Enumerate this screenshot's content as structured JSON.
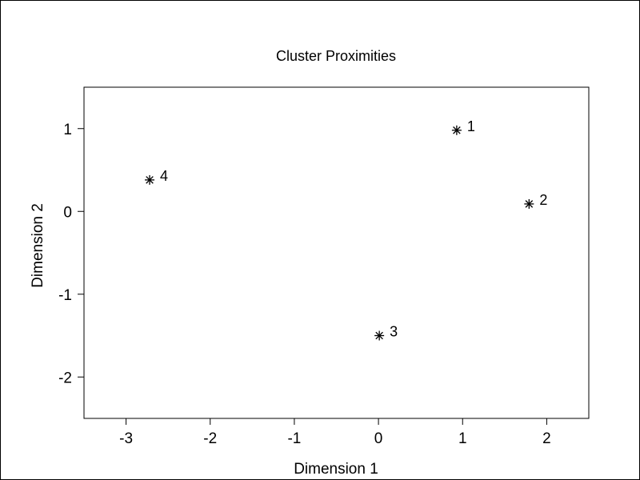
{
  "chart_data": {
    "type": "scatter",
    "title": "Cluster Proximities",
    "xlabel": "Dimension 1",
    "ylabel": "Dimension 2",
    "xlim": [
      -3.5,
      2.5
    ],
    "ylim": [
      -2.5,
      1.5
    ],
    "x_ticks": [
      -3,
      -2,
      -1,
      0,
      1,
      2
    ],
    "y_ticks": [
      -2,
      -1,
      0,
      1
    ],
    "x_tick_labels": [
      "-3",
      "-2",
      "-1",
      "0",
      "1",
      "2"
    ],
    "y_tick_labels": [
      "-2",
      "-1",
      "0",
      "1"
    ],
    "marker": "asterisk",
    "grid": false,
    "points": [
      {
        "label": "1",
        "x": 0.93,
        "y": 0.98
      },
      {
        "label": "2",
        "x": 1.79,
        "y": 0.09
      },
      {
        "label": "3",
        "x": 0.01,
        "y": -1.5
      },
      {
        "label": "4",
        "x": -2.72,
        "y": 0.38
      }
    ]
  }
}
